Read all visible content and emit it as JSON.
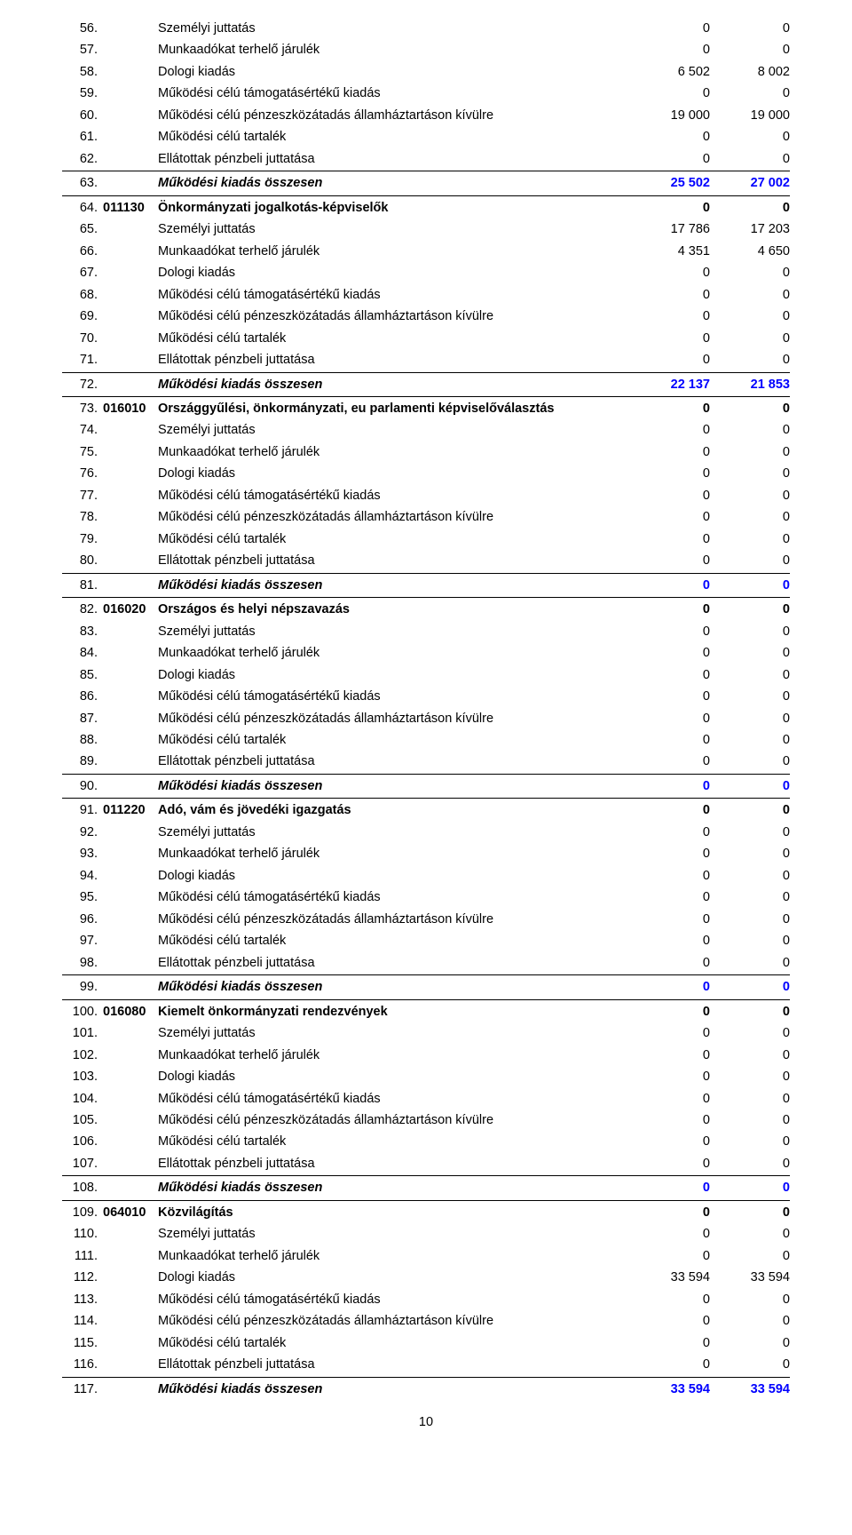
{
  "page_number": "10",
  "rows": [
    {
      "n": "56.",
      "code": "",
      "label": "Személyi juttatás",
      "v1": "0",
      "v2": "0",
      "bold": false,
      "blue": false,
      "topline": false
    },
    {
      "n": "57.",
      "code": "",
      "label": "Munkaadókat terhelő járulék",
      "v1": "0",
      "v2": "0",
      "bold": false,
      "blue": false,
      "topline": false
    },
    {
      "n": "58.",
      "code": "",
      "label": "Dologi kiadás",
      "v1": "6 502",
      "v2": "8 002",
      "bold": false,
      "blue": false,
      "topline": false
    },
    {
      "n": "59.",
      "code": "",
      "label": "Működési célú támogatásértékű kiadás",
      "v1": "0",
      "v2": "0",
      "bold": false,
      "blue": false,
      "topline": false
    },
    {
      "n": "60.",
      "code": "",
      "label": "Működési célú pénzeszközátadás államháztartáson kívülre",
      "v1": "19 000",
      "v2": "19 000",
      "bold": false,
      "blue": false,
      "topline": false
    },
    {
      "n": "61.",
      "code": "",
      "label": "Működési célú tartalék",
      "v1": "0",
      "v2": "0",
      "bold": false,
      "blue": false,
      "topline": false
    },
    {
      "n": "62.",
      "code": "",
      "label": "Ellátottak pénzbeli juttatása",
      "v1": "0",
      "v2": "0",
      "bold": false,
      "blue": false,
      "topline": false
    },
    {
      "n": "63.",
      "code": "",
      "label": "Működési kiadás összesen",
      "v1": "25 502",
      "v2": "27 002",
      "bold": true,
      "blue": true,
      "italic": true,
      "topline": true,
      "labelKeepBlack": true
    },
    {
      "n": "64.",
      "code": "011130",
      "label": "Önkormányzati jogalkotás-képviselők",
      "v1": "0",
      "v2": "0",
      "bold": true,
      "blue": false,
      "topline": true
    },
    {
      "n": "65.",
      "code": "",
      "label": "Személyi juttatás",
      "v1": "17 786",
      "v2": "17 203",
      "bold": false,
      "blue": false,
      "topline": false
    },
    {
      "n": "66.",
      "code": "",
      "label": "Munkaadókat terhelő járulék",
      "v1": "4 351",
      "v2": "4 650",
      "bold": false,
      "blue": false,
      "topline": false
    },
    {
      "n": "67.",
      "code": "",
      "label": "Dologi kiadás",
      "v1": "0",
      "v2": "0",
      "bold": false,
      "blue": false,
      "topline": false
    },
    {
      "n": "68.",
      "code": "",
      "label": "Működési célú támogatásértékű kiadás",
      "v1": "0",
      "v2": "0",
      "bold": false,
      "blue": false,
      "topline": false
    },
    {
      "n": "69.",
      "code": "",
      "label": "Működési célú pénzeszközátadás államháztartáson kívülre",
      "v1": "0",
      "v2": "0",
      "bold": false,
      "blue": false,
      "topline": false
    },
    {
      "n": "70.",
      "code": "",
      "label": "Működési célú tartalék",
      "v1": "0",
      "v2": "0",
      "bold": false,
      "blue": false,
      "topline": false
    },
    {
      "n": "71.",
      "code": "",
      "label": "Ellátottak pénzbeli juttatása",
      "v1": "0",
      "v2": "0",
      "bold": false,
      "blue": false,
      "topline": false
    },
    {
      "n": "72.",
      "code": "",
      "label": "Működési kiadás összesen",
      "v1": "22 137",
      "v2": "21 853",
      "bold": true,
      "blue": true,
      "italic": true,
      "topline": true,
      "labelKeepBlack": true
    },
    {
      "n": "73.",
      "code": "016010",
      "label": "Országgyűlési, önkormányzati, eu parlamenti képviselőválasztás",
      "v1": "0",
      "v2": "0",
      "bold": true,
      "blue": false,
      "topline": true,
      "labelHeader": true
    },
    {
      "n": "74.",
      "code": "",
      "label": "Személyi juttatás",
      "v1": "0",
      "v2": "0",
      "bold": false,
      "blue": false,
      "topline": false
    },
    {
      "n": "75.",
      "code": "",
      "label": "Munkaadókat terhelő járulék",
      "v1": "0",
      "v2": "0",
      "bold": false,
      "blue": false,
      "topline": false
    },
    {
      "n": "76.",
      "code": "",
      "label": "Dologi kiadás",
      "v1": "0",
      "v2": "0",
      "bold": false,
      "blue": false,
      "topline": false
    },
    {
      "n": "77.",
      "code": "",
      "label": "Működési célú támogatásértékű kiadás",
      "v1": "0",
      "v2": "0",
      "bold": false,
      "blue": false,
      "topline": false
    },
    {
      "n": "78.",
      "code": "",
      "label": "Működési célú pénzeszközátadás államháztartáson kívülre",
      "v1": "0",
      "v2": "0",
      "bold": false,
      "blue": false,
      "topline": false
    },
    {
      "n": "79.",
      "code": "",
      "label": "Működési célú tartalék",
      "v1": "0",
      "v2": "0",
      "bold": false,
      "blue": false,
      "topline": false
    },
    {
      "n": "80.",
      "code": "",
      "label": "Ellátottak pénzbeli juttatása",
      "v1": "0",
      "v2": "0",
      "bold": false,
      "blue": false,
      "topline": false
    },
    {
      "n": "81.",
      "code": "",
      "label": "Működési kiadás összesen",
      "v1": "0",
      "v2": "0",
      "bold": true,
      "blue": true,
      "italic": true,
      "topline": true,
      "labelKeepBlack": true
    },
    {
      "n": "82.",
      "code": "016020",
      "label": "Országos és helyi népszavazás",
      "v1": "0",
      "v2": "0",
      "bold": true,
      "blue": false,
      "topline": true
    },
    {
      "n": "83.",
      "code": "",
      "label": "Személyi juttatás",
      "v1": "0",
      "v2": "0",
      "bold": false,
      "blue": false,
      "topline": false
    },
    {
      "n": "84.",
      "code": "",
      "label": "Munkaadókat terhelő járulék",
      "v1": "0",
      "v2": "0",
      "bold": false,
      "blue": false,
      "topline": false
    },
    {
      "n": "85.",
      "code": "",
      "label": "Dologi kiadás",
      "v1": "0",
      "v2": "0",
      "bold": false,
      "blue": false,
      "topline": false
    },
    {
      "n": "86.",
      "code": "",
      "label": "Működési célú támogatásértékű kiadás",
      "v1": "0",
      "v2": "0",
      "bold": false,
      "blue": false,
      "topline": false
    },
    {
      "n": "87.",
      "code": "",
      "label": "Működési célú pénzeszközátadás államháztartáson kívülre",
      "v1": "0",
      "v2": "0",
      "bold": false,
      "blue": false,
      "topline": false
    },
    {
      "n": "88.",
      "code": "",
      "label": "Működési célú tartalék",
      "v1": "0",
      "v2": "0",
      "bold": false,
      "blue": false,
      "topline": false
    },
    {
      "n": "89.",
      "code": "",
      "label": "Ellátottak pénzbeli juttatása",
      "v1": "0",
      "v2": "0",
      "bold": false,
      "blue": false,
      "topline": false
    },
    {
      "n": "90.",
      "code": "",
      "label": "Működési kiadás összesen",
      "v1": "0",
      "v2": "0",
      "bold": true,
      "blue": true,
      "italic": true,
      "topline": true,
      "labelKeepBlack": true
    },
    {
      "n": "91.",
      "code": "011220",
      "label": "Adó, vám és jövedéki igazgatás",
      "v1": "0",
      "v2": "0",
      "bold": true,
      "blue": false,
      "topline": true
    },
    {
      "n": "92.",
      "code": "",
      "label": "Személyi juttatás",
      "v1": "0",
      "v2": "0",
      "bold": false,
      "blue": false,
      "topline": false
    },
    {
      "n": "93.",
      "code": "",
      "label": "Munkaadókat terhelő járulék",
      "v1": "0",
      "v2": "0",
      "bold": false,
      "blue": false,
      "topline": false
    },
    {
      "n": "94.",
      "code": "",
      "label": "Dologi kiadás",
      "v1": "0",
      "v2": "0",
      "bold": false,
      "blue": false,
      "topline": false
    },
    {
      "n": "95.",
      "code": "",
      "label": "Működési célú támogatásértékű kiadás",
      "v1": "0",
      "v2": "0",
      "bold": false,
      "blue": false,
      "topline": false
    },
    {
      "n": "96.",
      "code": "",
      "label": "Működési célú pénzeszközátadás államháztartáson kívülre",
      "v1": "0",
      "v2": "0",
      "bold": false,
      "blue": false,
      "topline": false
    },
    {
      "n": "97.",
      "code": "",
      "label": "Működési célú tartalék",
      "v1": "0",
      "v2": "0",
      "bold": false,
      "blue": false,
      "topline": false
    },
    {
      "n": "98.",
      "code": "",
      "label": "Ellátottak pénzbeli juttatása",
      "v1": "0",
      "v2": "0",
      "bold": false,
      "blue": false,
      "topline": false
    },
    {
      "n": "99.",
      "code": "",
      "label": "Működési kiadás összesen",
      "v1": "0",
      "v2": "0",
      "bold": true,
      "blue": true,
      "italic": true,
      "topline": true,
      "labelKeepBlack": true
    },
    {
      "n": "100.",
      "code": "016080",
      "label": "Kiemelt önkormányzati rendezvények",
      "v1": "0",
      "v2": "0",
      "bold": true,
      "blue": false,
      "topline": true
    },
    {
      "n": "101.",
      "code": "",
      "label": "Személyi juttatás",
      "v1": "0",
      "v2": "0",
      "bold": false,
      "blue": false,
      "topline": false
    },
    {
      "n": "102.",
      "code": "",
      "label": "Munkaadókat terhelő járulék",
      "v1": "0",
      "v2": "0",
      "bold": false,
      "blue": false,
      "topline": false
    },
    {
      "n": "103.",
      "code": "",
      "label": "Dologi kiadás",
      "v1": "0",
      "v2": "0",
      "bold": false,
      "blue": false,
      "topline": false
    },
    {
      "n": "104.",
      "code": "",
      "label": "Működési célú támogatásértékű kiadás",
      "v1": "0",
      "v2": "0",
      "bold": false,
      "blue": false,
      "topline": false
    },
    {
      "n": "105.",
      "code": "",
      "label": "Működési célú pénzeszközátadás államháztartáson kívülre",
      "v1": "0",
      "v2": "0",
      "bold": false,
      "blue": false,
      "topline": false
    },
    {
      "n": "106.",
      "code": "",
      "label": "Működési célú tartalék",
      "v1": "0",
      "v2": "0",
      "bold": false,
      "blue": false,
      "topline": false
    },
    {
      "n": "107.",
      "code": "",
      "label": "Ellátottak pénzbeli juttatása",
      "v1": "0",
      "v2": "0",
      "bold": false,
      "blue": false,
      "topline": false
    },
    {
      "n": "108.",
      "code": "",
      "label": "Működési kiadás összesen",
      "v1": "0",
      "v2": "0",
      "bold": true,
      "blue": true,
      "italic": true,
      "topline": true,
      "labelKeepBlack": true
    },
    {
      "n": "109.",
      "code": "064010",
      "label": "Közvilágítás",
      "v1": "0",
      "v2": "0",
      "bold": true,
      "blue": false,
      "topline": true
    },
    {
      "n": "110.",
      "code": "",
      "label": "Személyi juttatás",
      "v1": "0",
      "v2": "0",
      "bold": false,
      "blue": false,
      "topline": false
    },
    {
      "n": "111.",
      "code": "",
      "label": "Munkaadókat terhelő járulék",
      "v1": "0",
      "v2": "0",
      "bold": false,
      "blue": false,
      "topline": false
    },
    {
      "n": "112.",
      "code": "",
      "label": "Dologi kiadás",
      "v1": "33 594",
      "v2": "33 594",
      "bold": false,
      "blue": false,
      "topline": false
    },
    {
      "n": "113.",
      "code": "",
      "label": "Működési célú támogatásértékű kiadás",
      "v1": "0",
      "v2": "0",
      "bold": false,
      "blue": false,
      "topline": false
    },
    {
      "n": "114.",
      "code": "",
      "label": "Működési célú pénzeszközátadás államháztartáson kívülre",
      "v1": "0",
      "v2": "0",
      "bold": false,
      "blue": false,
      "topline": false
    },
    {
      "n": "115.",
      "code": "",
      "label": "Működési célú tartalék",
      "v1": "0",
      "v2": "0",
      "bold": false,
      "blue": false,
      "topline": false
    },
    {
      "n": "116.",
      "code": "",
      "label": "Ellátottak pénzbeli juttatása",
      "v1": "0",
      "v2": "0",
      "bold": false,
      "blue": false,
      "topline": false
    },
    {
      "n": "117.",
      "code": "",
      "label": "Működési kiadás összesen",
      "v1": "33 594",
      "v2": "33 594",
      "bold": true,
      "blue": true,
      "italic": true,
      "topline": true,
      "labelKeepBlack": true
    }
  ]
}
